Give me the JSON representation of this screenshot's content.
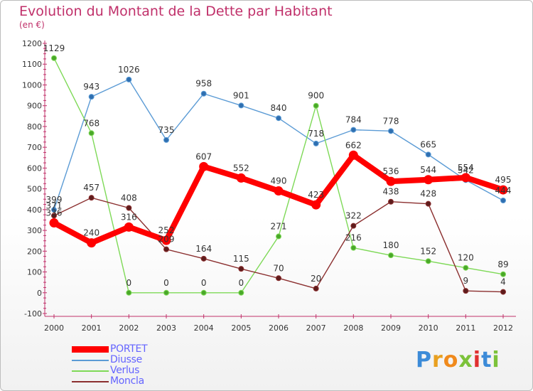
{
  "header": {
    "title": "Evolution du Montant de la Dette par Habitant",
    "subtitle": "(en €)"
  },
  "logo": {
    "text": "Proxiti",
    "colors": [
      "#3c8bd8",
      "#e8a020",
      "#f08a1c",
      "#7cc23a",
      "#e03030",
      "#3c8bd8",
      "#7cc23a"
    ]
  },
  "chart_data": {
    "type": "line",
    "title": "Evolution du Montant de la Dette par Habitant",
    "subtitle": "(en €)",
    "x": [
      "2000",
      "2001",
      "2002",
      "2003",
      "2004",
      "2005",
      "2006",
      "2007",
      "2008",
      "2009",
      "2010",
      "2011",
      "2012"
    ],
    "y_ticks": [
      "-100",
      "0",
      "100",
      "200",
      "300",
      "400",
      "500",
      "600",
      "700",
      "800",
      "900",
      "1000",
      "1100",
      "1200"
    ],
    "ylim": [
      -100,
      1200
    ],
    "grid": false,
    "legend_position": "bottom-left",
    "series": [
      {
        "name": "Diusse",
        "color": "#5b9bd5",
        "values": [
          399,
          943,
          1026,
          735,
          958,
          901,
          840,
          718,
          784,
          778,
          665,
          542,
          444
        ],
        "labels": [
          "399",
          "943",
          "1026",
          "735",
          "958",
          "901",
          "840",
          "718",
          "784",
          "778",
          "665",
          "542",
          "444"
        ]
      },
      {
        "name": "Verlus",
        "color": "#7ed957",
        "values": [
          1129,
          768,
          0,
          0,
          0,
          0,
          271,
          900,
          216,
          180,
          152,
          120,
          89
        ],
        "labels": [
          "1129",
          "768",
          "0",
          "0",
          "0",
          "0",
          "271",
          "900",
          "216",
          "180",
          "152",
          "120",
          "89"
        ]
      },
      {
        "name": "Moncla",
        "color": "#8b2f2f",
        "values": [
          371,
          457,
          408,
          209,
          164,
          115,
          70,
          20,
          322,
          438,
          428,
          9,
          4
        ],
        "labels": [
          "371",
          "457",
          "408",
          "209",
          "164",
          "115",
          "70",
          "20",
          "322",
          "438",
          "428",
          "9",
          "4"
        ]
      },
      {
        "name": "PORTET",
        "color": "#ff0000",
        "values": [
          336,
          240,
          316,
          252,
          607,
          552,
          490,
          423,
          662,
          536,
          544,
          554,
          495
        ],
        "labels": [
          "336",
          "240",
          "316",
          "252",
          "607",
          "552",
          "490",
          "423",
          "662",
          "536",
          "544",
          "554",
          "495"
        ]
      }
    ]
  },
  "legend": {
    "items": [
      {
        "label": "PORTET",
        "color": "#ff0000"
      },
      {
        "label": "Diusse",
        "color": "#5b9bd5"
      },
      {
        "label": "Verlus",
        "color": "#7ed957"
      },
      {
        "label": "Moncla",
        "color": "#8b2f2f"
      }
    ]
  }
}
